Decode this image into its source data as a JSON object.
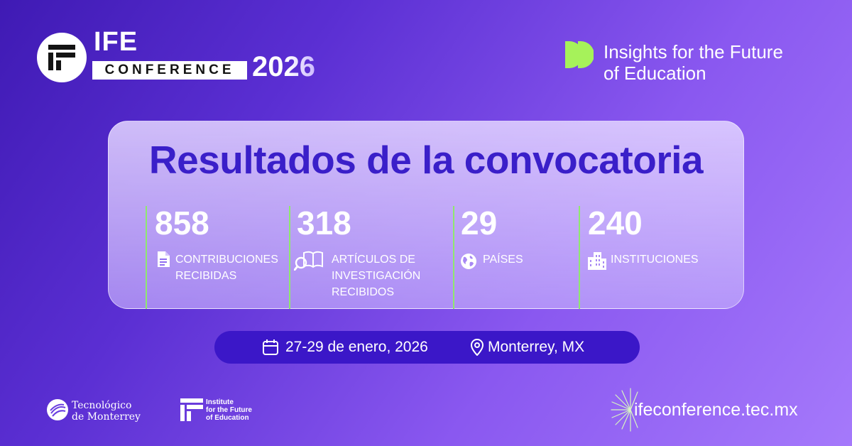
{
  "header": {
    "ife_word": "IFE",
    "conference_word": "CONFERENCE",
    "year": "2026",
    "insights_line1": "Insights for the Future",
    "insights_line2": "of Education",
    "insights_icon": "double-chevron-icon"
  },
  "card": {
    "title": "Resultados de la convocatoria",
    "stats": [
      {
        "value": "858",
        "icon": "document-icon",
        "label_lines": [
          "CONTRIBUCIONES",
          "RECIBIDAS"
        ]
      },
      {
        "value": "318",
        "icon": "book-search-icon",
        "label_lines": [
          "ARTÍCULOS DE",
          "INVESTIGACIÓN",
          "RECIBIDOS"
        ]
      },
      {
        "value": "29",
        "icon": "globe-icon",
        "label_lines": [
          "PAÍSES"
        ]
      },
      {
        "value": "240",
        "icon": "buildings-icon",
        "label_lines": [
          "INSTITUCIONES"
        ]
      }
    ]
  },
  "event": {
    "date": "27-29 de enero, 2026",
    "location": "Monterrey, MX"
  },
  "footer": {
    "tec_line1": "Tecnológico",
    "tec_line2": "de Monterrey",
    "ife_line1": "Institute",
    "ife_line2": "for the Future",
    "ife_line3": "of Education",
    "url": "ifeconference.tec.mx"
  },
  "colors": {
    "title": "#3a1fc9",
    "accent_green": "#8fe86e",
    "pill": "#3b17c8"
  }
}
